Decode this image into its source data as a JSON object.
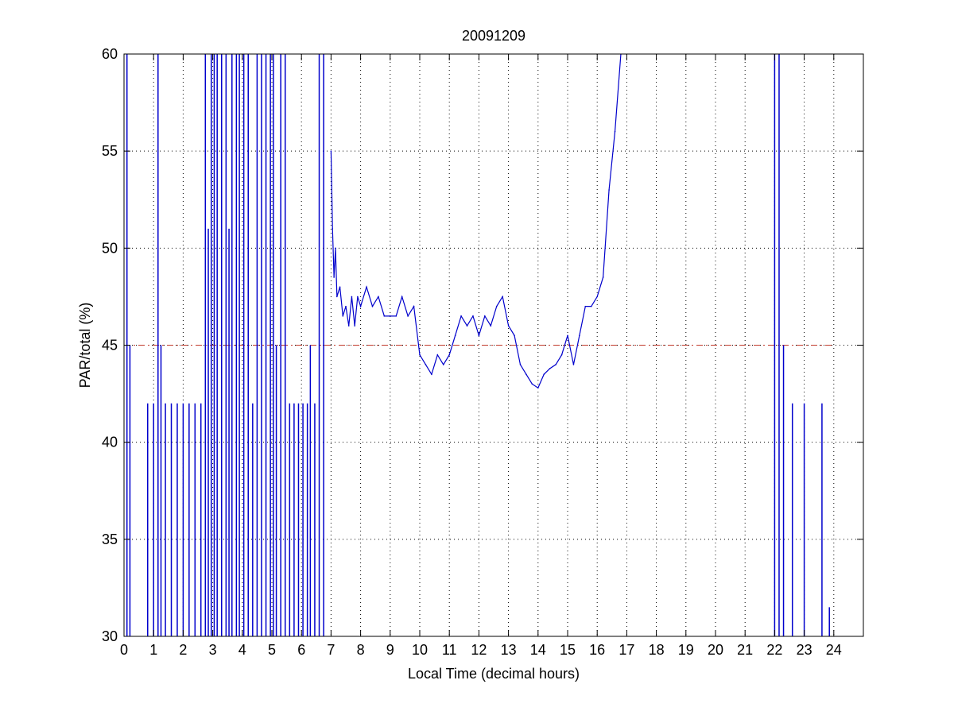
{
  "chart_data": {
    "type": "line",
    "title": "20091209",
    "xlabel": "Local Time (decimal hours)",
    "ylabel": "PAR/total (%)",
    "xlim": [
      0,
      25
    ],
    "ylim": [
      30,
      60
    ],
    "xticks": [
      0,
      1,
      2,
      3,
      4,
      5,
      6,
      7,
      8,
      9,
      10,
      11,
      12,
      13,
      14,
      15,
      16,
      17,
      18,
      19,
      20,
      21,
      22,
      23,
      24
    ],
    "yticks": [
      30,
      35,
      40,
      45,
      50,
      55,
      60
    ],
    "grid": true,
    "reference_line": {
      "y": 45,
      "x_range": [
        0,
        24
      ],
      "style": "dash-dot",
      "color": "#c0392b"
    },
    "series_color": "#0000cc",
    "series": [
      {
        "x": [
          7.0,
          7.05,
          7.1,
          7.15,
          7.2,
          7.3,
          7.4,
          7.5,
          7.6,
          7.7,
          7.8,
          7.9,
          8.0,
          8.2,
          8.4,
          8.6,
          8.8,
          9.0,
          9.2,
          9.4,
          9.6,
          9.8,
          10.0,
          10.2,
          10.4,
          10.6,
          10.8,
          11.0,
          11.2,
          11.4,
          11.6,
          11.8,
          12.0,
          12.2,
          12.4,
          12.6,
          12.8,
          13.0,
          13.2,
          13.4,
          13.6,
          13.8,
          14.0,
          14.2,
          14.4,
          14.6,
          14.8,
          15.0,
          15.2,
          15.4,
          15.6,
          15.8,
          16.0,
          16.2,
          16.4,
          16.6,
          16.8
        ],
        "y": [
          55.0,
          51.0,
          48.5,
          50.0,
          47.5,
          48.0,
          46.5,
          47.0,
          46.0,
          47.5,
          46.0,
          47.5,
          47.0,
          48.0,
          47.0,
          47.5,
          46.5,
          46.5,
          46.5,
          47.5,
          46.5,
          47.0,
          44.5,
          44.0,
          43.5,
          44.5,
          44.0,
          44.5,
          45.5,
          46.5,
          46.0,
          46.5,
          45.5,
          46.5,
          46.0,
          47.0,
          47.5,
          46.0,
          45.5,
          44.0,
          43.5,
          43.0,
          42.8,
          43.5,
          43.8,
          44.0,
          44.5,
          45.5,
          44.0,
          45.5,
          47.0,
          47.0,
          47.5,
          48.5,
          53.0,
          56.0,
          60.0
        ]
      }
    ],
    "spikes": [
      {
        "x": 0.1,
        "y_top": 60
      },
      {
        "x": 0.2,
        "y_top": 45
      },
      {
        "x": 0.8,
        "y_top": 42
      },
      {
        "x": 1.0,
        "y_top": 42
      },
      {
        "x": 1.15,
        "y_top": 60
      },
      {
        "x": 1.25,
        "y_top": 45
      },
      {
        "x": 1.4,
        "y_top": 42
      },
      {
        "x": 1.6,
        "y_top": 42
      },
      {
        "x": 1.8,
        "y_top": 42
      },
      {
        "x": 2.0,
        "y_top": 42
      },
      {
        "x": 2.2,
        "y_top": 42
      },
      {
        "x": 2.4,
        "y_top": 42
      },
      {
        "x": 2.6,
        "y_top": 42
      },
      {
        "x": 2.75,
        "y_top": 60
      },
      {
        "x": 2.85,
        "y_top": 51
      },
      {
        "x": 2.95,
        "y_top": 60
      },
      {
        "x": 3.05,
        "y_top": 60
      },
      {
        "x": 3.15,
        "y_top": 60
      },
      {
        "x": 3.3,
        "y_top": 60
      },
      {
        "x": 3.45,
        "y_top": 60
      },
      {
        "x": 3.55,
        "y_top": 51
      },
      {
        "x": 3.65,
        "y_top": 60
      },
      {
        "x": 3.8,
        "y_top": 60
      },
      {
        "x": 3.9,
        "y_top": 60
      },
      {
        "x": 4.05,
        "y_top": 60
      },
      {
        "x": 4.2,
        "y_top": 60
      },
      {
        "x": 4.35,
        "y_top": 42
      },
      {
        "x": 4.5,
        "y_top": 60
      },
      {
        "x": 4.65,
        "y_top": 60
      },
      {
        "x": 4.8,
        "y_top": 60
      },
      {
        "x": 4.95,
        "y_top": 60
      },
      {
        "x": 5.05,
        "y_top": 60
      },
      {
        "x": 5.15,
        "y_top": 45
      },
      {
        "x": 5.3,
        "y_top": 60
      },
      {
        "x": 5.45,
        "y_top": 60
      },
      {
        "x": 5.6,
        "y_top": 42
      },
      {
        "x": 5.75,
        "y_top": 42
      },
      {
        "x": 5.9,
        "y_top": 42
      },
      {
        "x": 6.05,
        "y_top": 42
      },
      {
        "x": 6.2,
        "y_top": 42
      },
      {
        "x": 6.3,
        "y_top": 45
      },
      {
        "x": 6.45,
        "y_top": 42
      },
      {
        "x": 6.6,
        "y_top": 60
      },
      {
        "x": 6.75,
        "y_top": 60
      },
      {
        "x": 22.0,
        "y_top": 60
      },
      {
        "x": 22.15,
        "y_top": 60
      },
      {
        "x": 22.3,
        "y_top": 45
      },
      {
        "x": 22.6,
        "y_top": 42
      },
      {
        "x": 23.0,
        "y_top": 42
      },
      {
        "x": 23.6,
        "y_top": 42
      },
      {
        "x": 23.85,
        "y_top": 31.5
      }
    ]
  }
}
